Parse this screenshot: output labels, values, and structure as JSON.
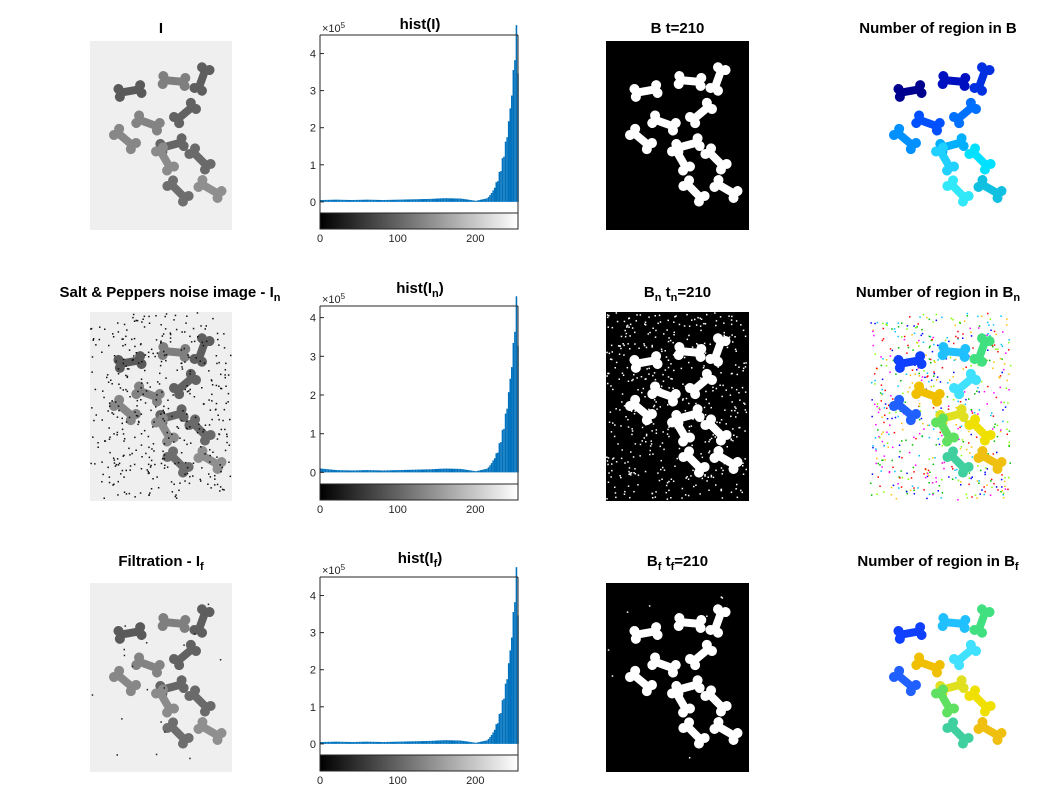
{
  "colors": {
    "bar": "#0072BD",
    "axis": "#262626",
    "paper_bg": "#f1f1f1",
    "dark_bg": "#000000",
    "cookie_gray": "#6e6e6e"
  },
  "row1": {
    "img_title": "I",
    "hist_title": "hist(I)",
    "bin_title_base": "B t=210",
    "region_title": "Number of region in B"
  },
  "row2": {
    "img_title_base": "Salt & Peppers noise image - I",
    "img_title_sub": "n",
    "hist_title_base": "hist(I",
    "hist_title_sub": "n",
    "hist_title_end": ")",
    "bin_title_a": "B",
    "bin_title_sub1": "n",
    "bin_title_b": " t",
    "bin_title_sub2": "n",
    "bin_title_c": "=210",
    "region_title_base": "Number of region in B",
    "region_title_sub": "n"
  },
  "row3": {
    "img_title_base": "Filtration - I",
    "img_title_sub": "f",
    "hist_title_base": "hist(I",
    "hist_title_sub": "f",
    "hist_title_end": ")",
    "bin_title_a": "B",
    "bin_title_sub1": "f",
    "bin_title_b": " t",
    "bin_title_sub2": "f",
    "bin_title_c": "=210",
    "region_title_base": "Number of region in B",
    "region_title_sub": "f"
  },
  "chart_data": [
    {
      "type": "bar",
      "title": "hist(I)",
      "exponent_label": "×10",
      "exponent_power": "5",
      "x_ticks": [
        "0",
        "100",
        "200"
      ],
      "y_ticks": [
        "0",
        "1",
        "2",
        "3",
        "4"
      ],
      "xlim": [
        0,
        255
      ],
      "ylim": [
        -0.3,
        4.5
      ],
      "grid": false,
      "gray_colorbar": true,
      "x": [
        0,
        20,
        40,
        60,
        80,
        100,
        120,
        140,
        160,
        180,
        200,
        215,
        222,
        228,
        232,
        236,
        240,
        244,
        248,
        251,
        253,
        255
      ],
      "values": [
        0.05,
        0.06,
        0.05,
        0.06,
        0.05,
        0.06,
        0.07,
        0.08,
        0.1,
        0.09,
        0.03,
        0.1,
        0.3,
        0.6,
        0.9,
        1.3,
        1.8,
        2.5,
        3.4,
        4.4,
        4.5,
        3.0
      ]
    },
    {
      "type": "bar",
      "title": "hist(In)",
      "exponent_label": "×10",
      "exponent_power": "5",
      "x_ticks": [
        "0",
        "100",
        "200"
      ],
      "y_ticks": [
        "0",
        "1",
        "2",
        "3",
        "4"
      ],
      "xlim": [
        0,
        255
      ],
      "ylim": [
        -0.3,
        4.3
      ],
      "grid": false,
      "gray_colorbar": true,
      "x": [
        0,
        20,
        40,
        60,
        80,
        100,
        120,
        140,
        160,
        180,
        200,
        215,
        222,
        228,
        232,
        236,
        240,
        244,
        248,
        251,
        253,
        255
      ],
      "values": [
        0.1,
        0.06,
        0.05,
        0.06,
        0.05,
        0.06,
        0.07,
        0.08,
        0.1,
        0.09,
        0.03,
        0.1,
        0.3,
        0.55,
        0.85,
        1.2,
        1.7,
        2.4,
        3.2,
        4.2,
        4.3,
        2.8
      ]
    },
    {
      "type": "bar",
      "title": "hist(If)",
      "exponent_label": "×10",
      "exponent_power": "5",
      "x_ticks": [
        "0",
        "100",
        "200"
      ],
      "y_ticks": [
        "0",
        "1",
        "2",
        "3",
        "4"
      ],
      "xlim": [
        0,
        255
      ],
      "ylim": [
        -0.3,
        4.5
      ],
      "grid": false,
      "gray_colorbar": true,
      "x": [
        0,
        20,
        40,
        60,
        80,
        100,
        120,
        140,
        160,
        180,
        200,
        215,
        222,
        228,
        232,
        236,
        240,
        244,
        248,
        251,
        253,
        255
      ],
      "values": [
        0.05,
        0.06,
        0.05,
        0.06,
        0.05,
        0.06,
        0.07,
        0.08,
        0.1,
        0.09,
        0.03,
        0.1,
        0.3,
        0.6,
        0.9,
        1.3,
        1.8,
        2.5,
        3.4,
        4.4,
        4.5,
        3.0
      ]
    }
  ]
}
